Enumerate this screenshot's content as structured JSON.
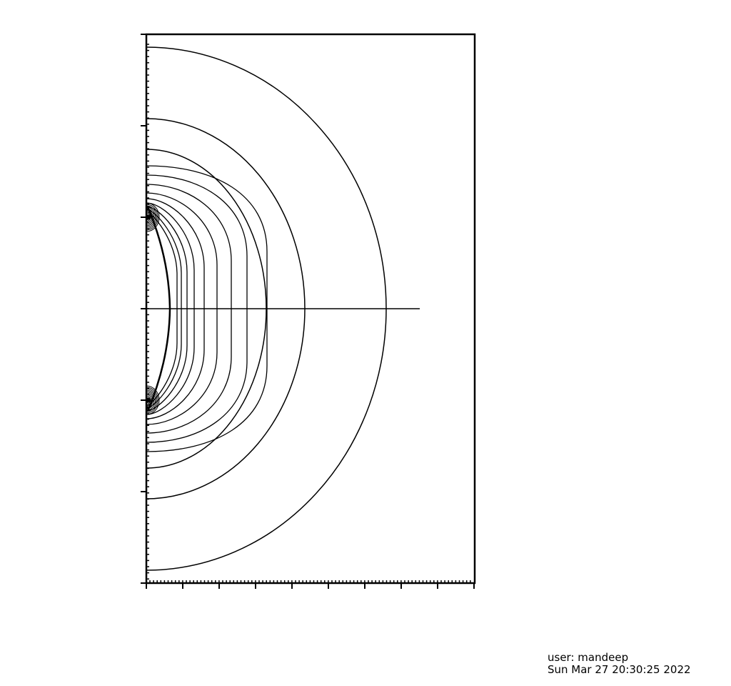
{
  "footer": {
    "user_line": "user: mandeep",
    "timestamp": "Sun Mar 27 20:30:25 2022"
  },
  "colors": {
    "background": "#ffffff",
    "ink": "#000000"
  },
  "contour_plot": {
    "frame": "box",
    "axis_tick_labels_shown": false,
    "grid": false
  }
}
